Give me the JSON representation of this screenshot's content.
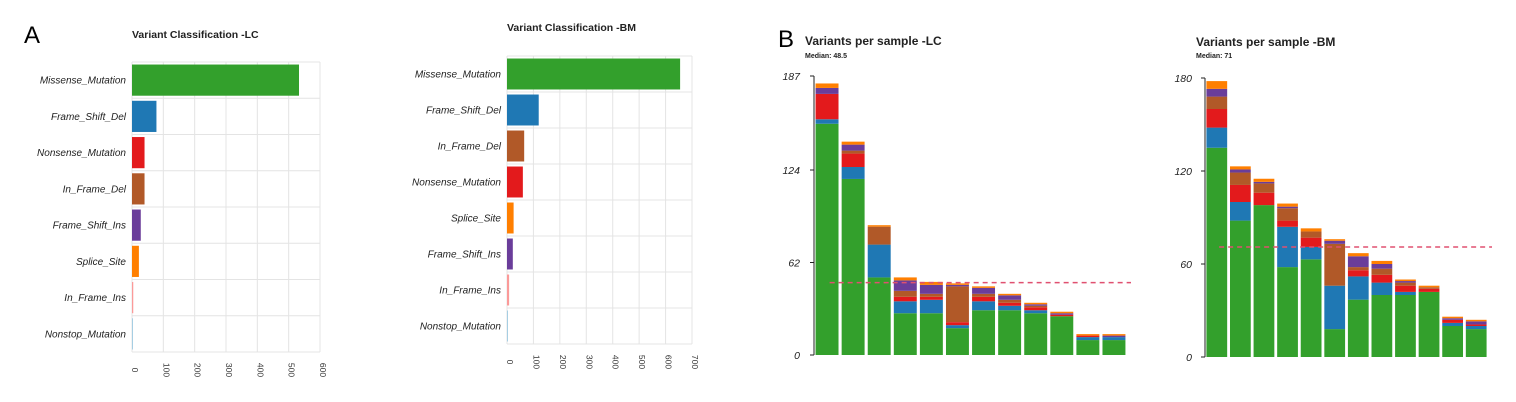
{
  "panels": {
    "a": "A",
    "b": "B"
  },
  "colors": {
    "Missense_Mutation": "#33a02c",
    "Frame_Shift_Del": "#1f78b4",
    "Nonsense_Mutation": "#e31a1c",
    "In_Frame_Del": "#b15928",
    "Frame_Shift_Ins": "#6a3d9a",
    "Splice_Site": "#ff7f00",
    "In_Frame_Ins": "#fb9a99",
    "Nonstop_Mutation": "#a6cee3",
    "median_line": "#e05070"
  },
  "chart_data": [
    {
      "type": "bar",
      "orientation": "horizontal",
      "title": "Variant Classification -LC",
      "categories": [
        "Missense_Mutation",
        "Frame_Shift_Del",
        "Nonsense_Mutation",
        "In_Frame_Del",
        "Frame_Shift_Ins",
        "Splice_Site",
        "In_Frame_Ins",
        "Nonstop_Mutation"
      ],
      "values": [
        533,
        78,
        40,
        40,
        28,
        22,
        4,
        1
      ],
      "xlim": [
        0,
        600
      ],
      "xticks": [
        0,
        100,
        200,
        300,
        400,
        500,
        600
      ],
      "grid": true
    },
    {
      "type": "bar",
      "orientation": "horizontal",
      "title": "Variant Classification -BM",
      "categories": [
        "Missense_Mutation",
        "Frame_Shift_Del",
        "In_Frame_Del",
        "Nonsense_Mutation",
        "Splice_Site",
        "Frame_Shift_Ins",
        "In_Frame_Ins",
        "Nonstop_Mutation"
      ],
      "values": [
        655,
        120,
        65,
        60,
        25,
        22,
        8,
        2
      ],
      "xlim": [
        0,
        700
      ],
      "xticks": [
        0,
        100,
        200,
        300,
        400,
        500,
        600,
        700
      ],
      "grid": true
    },
    {
      "type": "bar",
      "stacked": true,
      "title": "Variants per sample -LC",
      "subtitle": "Median: 48.5",
      "ylim": [
        0,
        187
      ],
      "yticks": [
        0,
        62,
        124,
        187
      ],
      "median": 48.5,
      "series": [
        {
          "name": "Missense_Mutation",
          "values": [
            155,
            118,
            52,
            28,
            28,
            18,
            30,
            30,
            28,
            26,
            10,
            10
          ]
        },
        {
          "name": "Frame_Shift_Del",
          "values": [
            3,
            8,
            22,
            8,
            9,
            2,
            6,
            3,
            2,
            0,
            2,
            2
          ]
        },
        {
          "name": "Nonsense_Mutation",
          "values": [
            17,
            9,
            0,
            3,
            2,
            2,
            3,
            2,
            2,
            1,
            1,
            0
          ]
        },
        {
          "name": "In_Frame_Del",
          "values": [
            0,
            2,
            12,
            4,
            2,
            24,
            2,
            2,
            1,
            0,
            0,
            0
          ]
        },
        {
          "name": "Frame_Shift_Ins",
          "values": [
            4,
            4,
            0,
            7,
            6,
            1,
            4,
            3,
            1,
            1,
            0,
            1
          ]
        },
        {
          "name": "Splice_Site",
          "values": [
            3,
            2,
            1,
            2,
            2,
            1,
            1,
            1,
            1,
            1,
            1,
            1
          ]
        }
      ]
    },
    {
      "type": "bar",
      "stacked": true,
      "title": "Variants per sample -BM",
      "subtitle": "Median: 71",
      "ylim": [
        0,
        180
      ],
      "yticks": [
        0,
        60,
        120,
        180
      ],
      "median": 71,
      "series": [
        {
          "name": "Missense_Mutation",
          "values": [
            135,
            88,
            98,
            58,
            63,
            18,
            37,
            40,
            40,
            42,
            20,
            18
          ]
        },
        {
          "name": "Frame_Shift_Del",
          "values": [
            13,
            12,
            0,
            26,
            8,
            28,
            15,
            8,
            2,
            0,
            2,
            2
          ]
        },
        {
          "name": "Nonsense_Mutation",
          "values": [
            12,
            11,
            8,
            4,
            6,
            0,
            4,
            5,
            4,
            2,
            2,
            1
          ]
        },
        {
          "name": "In_Frame_Del",
          "values": [
            8,
            8,
            6,
            8,
            4,
            27,
            2,
            4,
            2,
            1,
            0,
            0
          ]
        },
        {
          "name": "Frame_Shift_Ins",
          "values": [
            5,
            2,
            1,
            1,
            0,
            2,
            7,
            3,
            1,
            0,
            1,
            2
          ]
        },
        {
          "name": "Splice_Site",
          "values": [
            5,
            2,
            2,
            2,
            2,
            1,
            2,
            2,
            1,
            1,
            1,
            1
          ]
        }
      ]
    }
  ]
}
